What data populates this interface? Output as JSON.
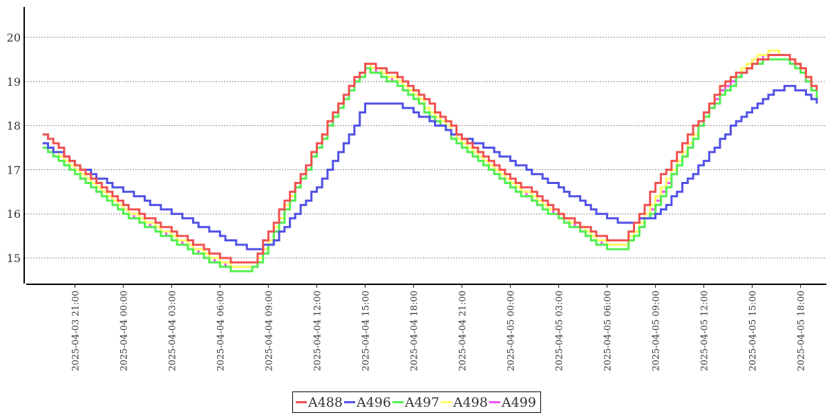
{
  "chart_data": {
    "type": "line",
    "step": true,
    "title": "",
    "xlabel": "",
    "ylabel": "",
    "ylim": [
      14.42,
      20.69
    ],
    "yticks": [
      15,
      16,
      17,
      18,
      19,
      20
    ],
    "x_start": "2025-04-03 19:00",
    "x_step_hours": 1,
    "xlim_hours": [
      -1.1,
      48.6
    ],
    "grid": "horizontal dotted",
    "legend_position": "bottom",
    "xtick_hours": [
      2,
      5,
      8,
      11,
      14,
      17,
      20,
      23,
      26,
      29,
      32,
      35,
      38,
      41,
      44,
      47
    ],
    "xtick_labels": [
      "2025-04-03  21:00",
      "2025-04-04  00:00",
      "2025-04-04  03:00",
      "2025-04-04  06:00",
      "2025-04-04  09:00",
      "2025-04-04  12:00",
      "2025-04-04  15:00",
      "2025-04-04  18:00",
      "2025-04-04  21:00",
      "2025-04-05  00:00",
      "2025-04-05  03:00",
      "2025-04-05  06:00",
      "2025-04-05  09:00",
      "2025-04-05  12:00",
      "2025-04-05  15:00",
      "2025-04-05  18:00"
    ],
    "series": [
      {
        "name": "A488",
        "color": "#f05050",
        "values": [
          17.8,
          17.45,
          17.1,
          16.8,
          16.5,
          16.2,
          16.0,
          15.8,
          15.6,
          15.4,
          15.2,
          15.0,
          14.9,
          14.9,
          15.6,
          16.3,
          16.9,
          17.6,
          18.3,
          18.9,
          19.4,
          19.3,
          19.1,
          18.8,
          18.45,
          18.1,
          17.7,
          17.4,
          17.1,
          16.8,
          16.55,
          16.25,
          16.0,
          15.8,
          15.6,
          15.4,
          15.4,
          16.0,
          16.7,
          17.2,
          17.8,
          18.3,
          18.9,
          19.15,
          19.4,
          19.6,
          19.6,
          19.3,
          18.75
        ]
      },
      {
        "name": "A496",
        "color": "#5050e6",
        "values": [
          17.6,
          17.35,
          17.1,
          16.9,
          16.7,
          16.5,
          16.35,
          16.15,
          16.0,
          15.85,
          15.65,
          15.5,
          15.3,
          15.2,
          15.3,
          15.7,
          16.15,
          16.6,
          17.2,
          17.8,
          18.5,
          18.5,
          18.5,
          18.3,
          18.1,
          17.9,
          17.7,
          17.55,
          17.4,
          17.2,
          17.0,
          16.8,
          16.6,
          16.35,
          16.1,
          15.9,
          15.8,
          15.85,
          15.95,
          16.4,
          16.8,
          17.2,
          17.7,
          18.1,
          18.4,
          18.7,
          18.9,
          18.8,
          18.5
        ]
      },
      {
        "name": "A497",
        "color": "#50f050",
        "values": [
          17.5,
          17.2,
          16.9,
          16.6,
          16.3,
          16.0,
          15.8,
          15.6,
          15.4,
          15.2,
          15.0,
          14.8,
          14.7,
          14.75,
          15.3,
          16.1,
          16.8,
          17.5,
          18.2,
          18.8,
          19.3,
          19.1,
          18.9,
          18.6,
          18.2,
          17.85,
          17.5,
          17.2,
          16.9,
          16.6,
          16.35,
          16.1,
          15.9,
          15.65,
          15.4,
          15.2,
          15.2,
          15.7,
          16.2,
          16.85,
          17.5,
          18.2,
          18.7,
          19.05,
          19.4,
          19.5,
          19.5,
          19.2,
          18.6
        ]
      },
      {
        "name": "A498",
        "color": "#ffff60",
        "values": [
          17.6,
          17.3,
          17.0,
          16.7,
          16.4,
          16.1,
          15.9,
          15.7,
          15.5,
          15.3,
          15.1,
          14.9,
          14.8,
          14.8,
          15.4,
          16.2,
          16.9,
          17.6,
          18.3,
          18.9,
          19.4,
          19.2,
          19.0,
          18.7,
          18.3,
          17.95,
          17.6,
          17.3,
          17.0,
          16.7,
          16.45,
          16.2,
          16.0,
          15.75,
          15.5,
          15.3,
          15.3,
          15.8,
          16.4,
          17.0,
          17.6,
          18.3,
          18.9,
          19.2,
          19.5,
          19.7,
          19.6,
          19.3,
          18.7
        ]
      },
      {
        "name": "A499",
        "color": "#f050f0",
        "values": [
          17.55,
          17.25,
          16.95,
          16.65,
          16.35,
          16.05,
          15.85,
          15.65,
          15.45,
          15.25,
          15.05,
          14.85,
          14.8,
          14.8,
          15.35,
          16.15,
          16.85,
          17.55,
          18.25,
          18.85,
          19.35,
          19.15,
          18.95,
          18.65,
          18.25,
          17.9,
          17.55,
          17.25,
          16.95,
          16.65,
          16.4,
          16.15,
          15.95,
          15.7,
          15.45,
          15.25,
          15.25,
          15.7,
          16.3,
          16.9,
          17.55,
          18.25,
          18.8,
          19.1,
          19.45,
          19.6,
          19.55,
          19.25,
          18.65
        ]
      }
    ]
  }
}
